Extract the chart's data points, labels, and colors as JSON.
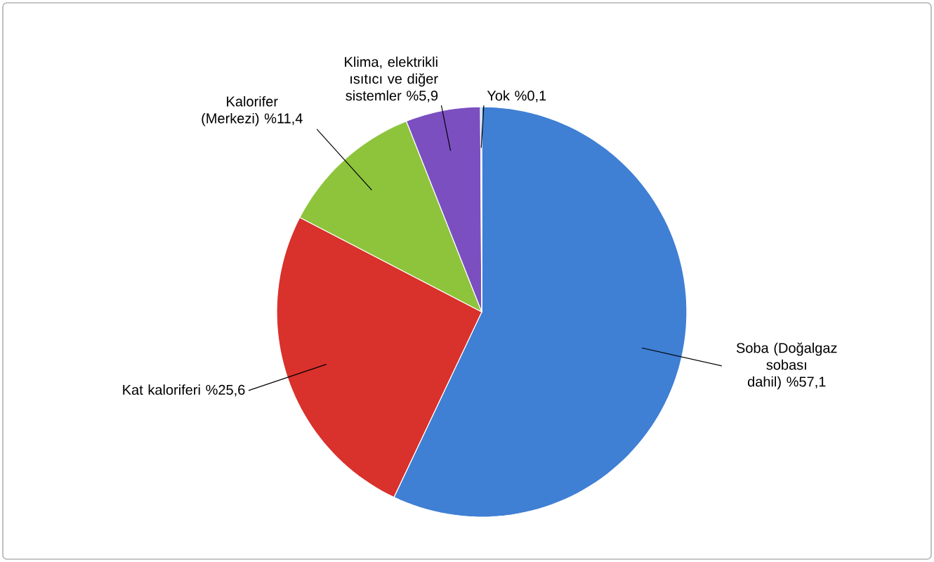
{
  "chart_data": {
    "type": "pie",
    "categories": [
      "Soba (Doğalgaz sobası dahil)",
      "Kat kaloriferi",
      "Kalorifer (Merkezi)",
      "Klima, elektrikli ısıtıcı ve diğer sistemler",
      "Yok"
    ],
    "values": [
      57.1,
      25.6,
      11.4,
      5.9,
      0.1
    ],
    "value_labels": [
      "%57,1",
      "%25,6",
      "%11,4",
      "%5,9",
      "%0,1"
    ],
    "colors": [
      "#3f7fd4",
      "#d9312b",
      "#8dc43c",
      "#7b4fc0",
      "#4bacc6"
    ]
  }
}
